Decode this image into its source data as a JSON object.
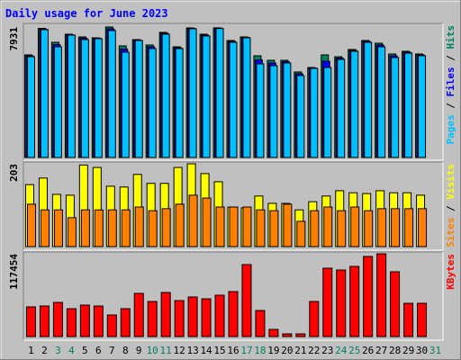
{
  "chart_data": [
    {
      "type": "bar",
      "title": "Daily usage for June 2023",
      "categories": [
        "1",
        "2",
        "3",
        "4",
        "5",
        "6",
        "7",
        "8",
        "9",
        "10",
        "11",
        "12",
        "13",
        "14",
        "15",
        "16",
        "17",
        "18",
        "19",
        "20",
        "21",
        "22",
        "23",
        "24",
        "25",
        "26",
        "27",
        "28",
        "29",
        "30",
        "31"
      ],
      "category_colors": [
        "#000000",
        "#000000",
        "#00805c",
        "#00805c",
        "#000000",
        "#000000",
        "#000000",
        "#000000",
        "#000000",
        "#00805c",
        "#00805c",
        "#000000",
        "#000000",
        "#000000",
        "#000000",
        "#000000",
        "#00805c",
        "#00805c",
        "#000000",
        "#000000",
        "#000000",
        "#000000",
        "#000000",
        "#00805c",
        "#00805c",
        "#000000",
        "#000000",
        "#000000",
        "#000000",
        "#000000",
        "#00805c"
      ],
      "legend_separator": " / ",
      "series": [
        {
          "name": "Hits",
          "color": "#00805c",
          "values": [
            6236,
            7850,
            7002,
            7494,
            7330,
            7275,
            7931,
            6783,
            7166,
            6838,
            7604,
            6728,
            7877,
            7494,
            7880,
            7111,
            7330,
            6181,
            5908,
            5908,
            5197,
            5470,
            6236,
            6126,
            6564,
            7111,
            6947,
            6291,
            6455,
            6291,
            null
          ]
        },
        {
          "name": "Files",
          "color": "#0000ff",
          "values": [
            6180,
            7800,
            6860,
            7460,
            7250,
            7250,
            7820,
            6590,
            7140,
            6730,
            7550,
            6670,
            7850,
            7440,
            7860,
            7060,
            7300,
            5930,
            5740,
            5820,
            5090,
            5440,
            5850,
            6040,
            6510,
            7060,
            6840,
            6180,
            6400,
            6240,
            null
          ]
        },
        {
          "name": "Pages",
          "color": "#00c0ff",
          "values": [
            6126,
            7770,
            6728,
            7439,
            7166,
            7220,
            7713,
            6400,
            7111,
            6619,
            7494,
            6619,
            7822,
            7385,
            7840,
            7002,
            7275,
            5689,
            5579,
            5744,
            4978,
            5415,
            5470,
            5962,
            6455,
            7002,
            6728,
            6072,
            6345,
            6181,
            null
          ]
        }
      ],
      "ylim": [
        0,
        7931
      ],
      "yticks": [
        7931
      ]
    },
    {
      "type": "bar",
      "legend_separator": " / ",
      "series": [
        {
          "name": "Visits",
          "color": "#ffff00",
          "values": [
            152,
            168,
            128,
            126,
            200,
            194,
            148,
            146,
            177,
            155,
            155,
            194,
            203,
            179,
            159,
            97,
            95,
            124,
            106,
            106,
            90,
            110,
            124,
            137,
            132,
            130,
            137,
            132,
            132,
            126,
            null
          ]
        },
        {
          "name": "Sites",
          "color": "#ff8000",
          "values": [
            104,
            90,
            90,
            71,
            90,
            90,
            90,
            90,
            97,
            88,
            93,
            104,
            126,
            119,
            97,
            97,
            97,
            90,
            88,
            104,
            62,
            88,
            97,
            88,
            97,
            88,
            93,
            93,
            93,
            93,
            null
          ]
        }
      ],
      "ylim": [
        0,
        203
      ],
      "yticks": [
        203
      ]
    },
    {
      "type": "bar",
      "series": [
        {
          "name": "KBytes",
          "color": "#ff0000",
          "values": [
            42130,
            43410,
            48510,
            39580,
            44680,
            43410,
            30640,
            39580,
            61280,
            49790,
            62560,
            51070,
            56170,
            53620,
            58730,
            63830,
            102140,
            37020,
            10210,
            3830,
            3830,
            49790,
            97030,
            94480,
            99580,
            113630,
            117454,
            91920,
            47240,
            47240,
            null
          ]
        }
      ],
      "ylim": [
        0,
        117454
      ],
      "yticks": [
        117454
      ]
    }
  ]
}
